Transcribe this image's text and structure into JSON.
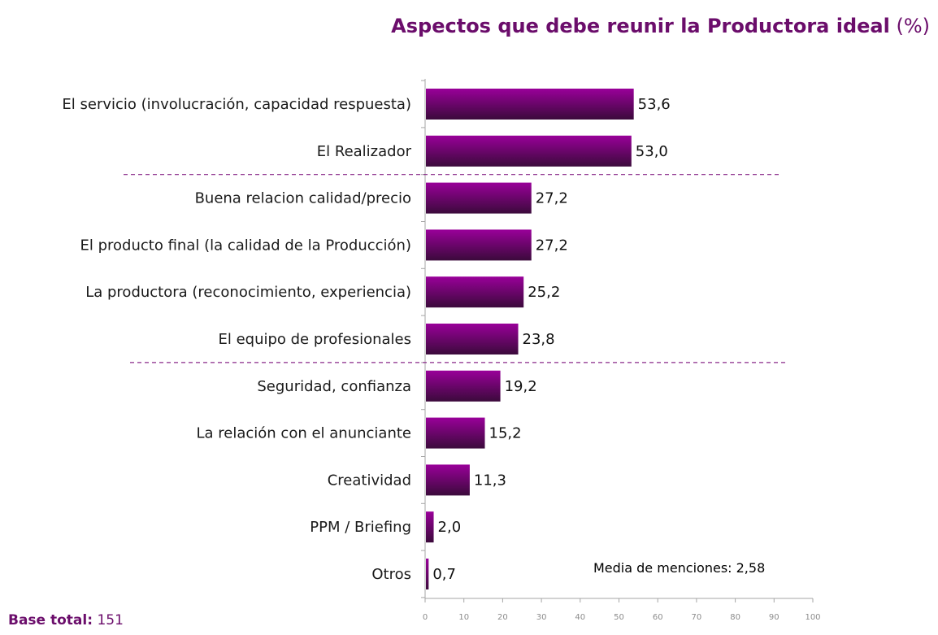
{
  "title": "Aspectos que debe reunir la Productora ideal",
  "title_unit": "(%)",
  "base_total": {
    "label": "Base total:",
    "value": "151"
  },
  "note": "Media de menciones: 2,58",
  "colors": {
    "bar_top": "#990099",
    "bar_bottom": "#3b0a3b",
    "title": "#6b0d6b",
    "separator": "#8a2a8a"
  },
  "chart_data": {
    "type": "bar",
    "orientation": "horizontal",
    "categories": [
      "El servicio (involucración, capacidad respuesta)",
      "El Realizador",
      "Buena relacion calidad/precio",
      "El producto final (la calidad de la Producción)",
      "La productora (reconocimiento, experiencia)",
      "El equipo de profesionales",
      "Seguridad, confianza",
      "La relación con el anunciante",
      "Creatividad",
      "PPM / Briefing",
      "Otros"
    ],
    "values": [
      53.6,
      53.0,
      27.2,
      27.2,
      25.2,
      23.8,
      19.2,
      15.2,
      11.3,
      2.0,
      0.7
    ],
    "value_labels": [
      "53,6",
      "53,0",
      "27,2",
      "27,2",
      "25,2",
      "23,8",
      "19,2",
      "15,2",
      "11,3",
      "2,0",
      "0,7"
    ],
    "xlim": [
      0,
      100
    ],
    "xticks": [
      0,
      10,
      20,
      30,
      40,
      50,
      60,
      70,
      80,
      90,
      100
    ],
    "group_separators_after_index": [
      1,
      5
    ],
    "title": "Aspectos que debe reunir la Productora ideal (%)",
    "xlabel": "",
    "ylabel": "",
    "grid": false
  }
}
